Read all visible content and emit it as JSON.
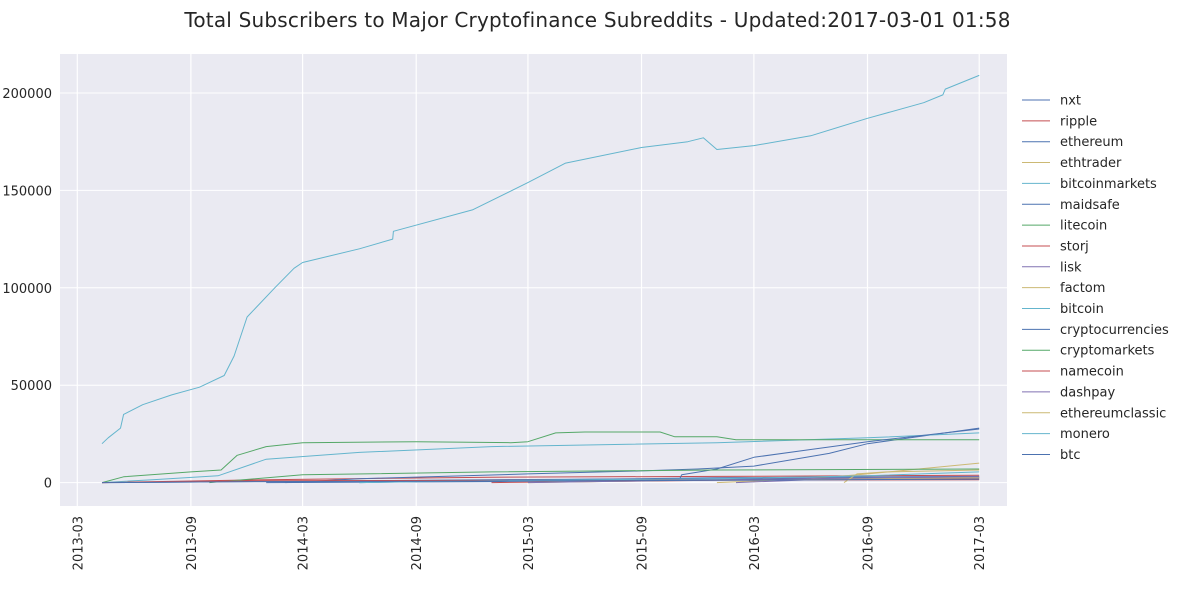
{
  "title": "Total Subscribers to Major Cryptofinance Subreddits - Updated:2017-03-01 01:58",
  "chart_data": {
    "type": "line",
    "title": "Total Subscribers to Major Cryptofinance Subreddits - Updated:2017-03-01 01:58",
    "xlabel": "",
    "ylabel": "",
    "xlim": [
      "2013-02-01",
      "2017-04-15"
    ],
    "ylim": [
      -12000,
      220000
    ],
    "x_ticks": [
      "2013-03",
      "2013-09",
      "2014-03",
      "2014-09",
      "2015-03",
      "2015-09",
      "2016-03",
      "2016-09",
      "2017-03"
    ],
    "y_ticks": [
      0,
      50000,
      100000,
      150000,
      200000
    ],
    "y_tick_labels": [
      "0",
      "50000",
      "100000",
      "150000",
      "200000"
    ],
    "grid": true,
    "legend_position": "right",
    "background": "#EAEAF2",
    "series": [
      {
        "name": "nxt",
        "color": "#4C72B0",
        "dates": [
          "2013-04-10",
          "2014-01-01",
          "2015-01-01",
          "2016-01-01",
          "2017-03-01"
        ],
        "values": [
          0,
          500,
          1500,
          2000,
          2600
        ]
      },
      {
        "name": "ripple",
        "color": "#C44E52",
        "dates": [
          "2013-04-10",
          "2014-01-01",
          "2015-01-01",
          "2016-01-01",
          "2017-03-01"
        ],
        "values": [
          0,
          1500,
          2800,
          3200,
          3800
        ]
      },
      {
        "name": "ethereum",
        "color": "#4C72B0",
        "dates": [
          "2014-02-01",
          "2014-06-01",
          "2015-03-01",
          "2015-09-01",
          "2015-12-01",
          "2016-03-01",
          "2016-07-01",
          "2016-09-01",
          "2017-03-01"
        ],
        "values": [
          0,
          2000,
          4500,
          6000,
          7000,
          8500,
          15000,
          20000,
          28000
        ]
      },
      {
        "name": "ethtrader",
        "color": "#CCB974",
        "dates": [
          "2016-01-01",
          "2016-06-01",
          "2016-09-01",
          "2017-03-01"
        ],
        "values": [
          0,
          2000,
          4500,
          10000
        ]
      },
      {
        "name": "bitcoinmarkets",
        "color": "#64B5CD",
        "dates": [
          "2013-04-10",
          "2013-07-01",
          "2013-10-15",
          "2014-01-01",
          "2014-06-01",
          "2015-01-01",
          "2016-01-01",
          "2016-09-01",
          "2017-03-01"
        ],
        "values": [
          0,
          1500,
          3500,
          12000,
          15500,
          18500,
          20500,
          23000,
          25500
        ]
      },
      {
        "name": "maidsafe",
        "color": "#4C72B0",
        "dates": [
          "2014-06-01",
          "2015-01-01",
          "2016-01-01",
          "2017-03-01"
        ],
        "values": [
          0,
          1200,
          2500,
          3200
        ]
      },
      {
        "name": "litecoin",
        "color": "#55A868",
        "dates": [
          "2013-04-10",
          "2013-05-15",
          "2013-09-01",
          "2013-10-20",
          "2013-11-15",
          "2014-01-01",
          "2014-03-01",
          "2014-09-01",
          "2015-02-01",
          "2015-03-01",
          "2015-04-15",
          "2015-06-01",
          "2015-10-01",
          "2015-10-25",
          "2016-01-01",
          "2016-02-01",
          "2016-06-01",
          "2017-03-01"
        ],
        "values": [
          0,
          3000,
          5500,
          6500,
          14000,
          18500,
          20500,
          21000,
          20500,
          21000,
          25500,
          26000,
          26000,
          23500,
          23500,
          22000,
          22000,
          22000
        ]
      },
      {
        "name": "storj",
        "color": "#C44E52",
        "dates": [
          "2015-01-01",
          "2016-01-01",
          "2017-03-01"
        ],
        "values": [
          0,
          1200,
          2000
        ]
      },
      {
        "name": "lisk",
        "color": "#8172B2",
        "dates": [
          "2016-02-01",
          "2016-06-01",
          "2017-03-01"
        ],
        "values": [
          0,
          1500,
          2500
        ]
      },
      {
        "name": "factom",
        "color": "#CCB974",
        "dates": [
          "2015-03-01",
          "2016-01-01",
          "2017-03-01"
        ],
        "values": [
          0,
          1500,
          2500
        ]
      },
      {
        "name": "bitcoin",
        "color": "#64B5CD",
        "dates": [
          "2013-04-10",
          "2013-04-20",
          "2013-05-10",
          "2013-05-15",
          "2013-06-15",
          "2013-08-01",
          "2013-09-15",
          "2013-10-25",
          "2013-11-10",
          "2013-12-01",
          "2014-01-15",
          "2014-02-15",
          "2014-03-01",
          "2014-06-01",
          "2014-07-25",
          "2014-07-26",
          "2014-12-01",
          "2015-03-01",
          "2015-05-01",
          "2015-09-01",
          "2015-11-15",
          "2015-12-10",
          "2016-01-01",
          "2016-03-01",
          "2016-06-01",
          "2016-09-01",
          "2016-12-01",
          "2017-01-01",
          "2017-01-05",
          "2017-03-01"
        ],
        "values": [
          20000,
          23000,
          28000,
          35000,
          40000,
          45000,
          49000,
          55000,
          65000,
          85000,
          100000,
          110000,
          113000,
          120000,
          125000,
          129000,
          140000,
          154000,
          164000,
          172000,
          175000,
          177000,
          171000,
          173000,
          178000,
          187000,
          195000,
          199000,
          202000,
          209000
        ]
      },
      {
        "name": "cryptocurrencies",
        "color": "#4C72B0",
        "dates": [
          "2014-01-01",
          "2015-01-01",
          "2015-11-01",
          "2015-11-05",
          "2016-01-01",
          "2016-03-01",
          "2016-06-01",
          "2016-09-01",
          "2017-03-01"
        ],
        "values": [
          0,
          500,
          1500,
          4000,
          7000,
          13000,
          17000,
          21000,
          27500
        ]
      },
      {
        "name": "cryptomarkets",
        "color": "#55A868",
        "dates": [
          "2013-10-01",
          "2014-03-01",
          "2015-01-01",
          "2016-01-01",
          "2017-03-01"
        ],
        "values": [
          0,
          4000,
          5500,
          6500,
          7000
        ]
      },
      {
        "name": "namecoin",
        "color": "#C44E52",
        "dates": [
          "2013-04-10",
          "2014-01-01",
          "2017-03-01"
        ],
        "values": [
          0,
          1000,
          1500
        ]
      },
      {
        "name": "dashpay",
        "color": "#8172B2",
        "dates": [
          "2015-03-01",
          "2016-01-01",
          "2017-03-01"
        ],
        "values": [
          0,
          1500,
          3000
        ]
      },
      {
        "name": "ethereumclassic",
        "color": "#CCB974",
        "dates": [
          "2016-07-25",
          "2016-08-15",
          "2016-10-01",
          "2017-03-01"
        ],
        "values": [
          0,
          4500,
          5500,
          6500
        ]
      },
      {
        "name": "monero",
        "color": "#64B5CD",
        "dates": [
          "2014-06-01",
          "2015-01-01",
          "2016-01-01",
          "2016-09-01",
          "2017-03-01"
        ],
        "values": [
          0,
          1000,
          2000,
          3500,
          5500
        ]
      },
      {
        "name": "btc",
        "color": "#4C72B0",
        "dates": [
          "2013-04-10",
          "2014-01-01",
          "2015-01-01",
          "2016-01-01",
          "2017-03-01"
        ],
        "values": [
          0,
          500,
          800,
          1200,
          1800
        ]
      }
    ]
  }
}
